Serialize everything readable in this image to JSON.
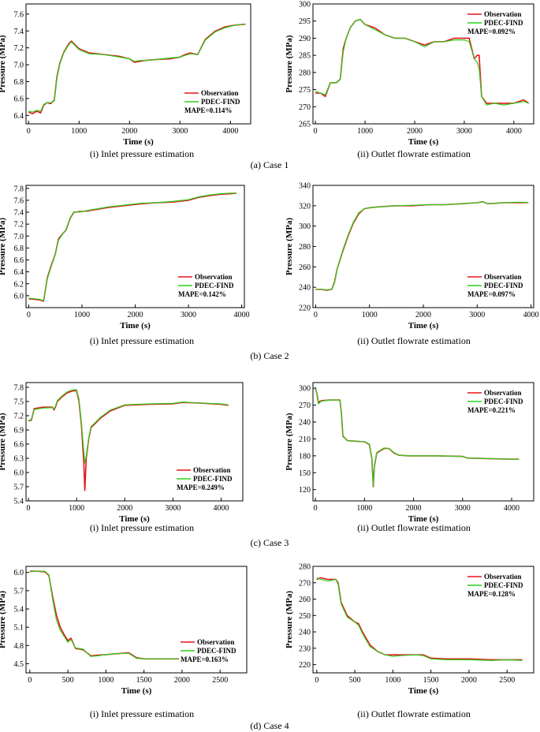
{
  "colors": {
    "observation": "#e8141c",
    "pdec_find": "#2bd11c",
    "axis": "#000000"
  },
  "chart_data": [
    {
      "type": "line",
      "id": "case1-inlet",
      "panel": "(i) Inlet pressure estimation",
      "xlabel": "Time (s)",
      "ylabel": "Pressure (MPa)",
      "xlim": [
        -50,
        4400
      ],
      "ylim": [
        6.3,
        7.72
      ],
      "xticks": [
        0,
        1000,
        2000,
        3000,
        4000
      ],
      "yticks": [
        6.4,
        6.6,
        6.8,
        7.0,
        7.2,
        7.4,
        7.6
      ],
      "ydec": 1,
      "legend": {
        "position": "bottom-right",
        "entries": [
          "Observation",
          "PDEC-FIND"
        ],
        "mape": "MAPE=0.114%"
      },
      "x": [
        0,
        80,
        160,
        240,
        300,
        360,
        440,
        510,
        560,
        620,
        700,
        800,
        850,
        900,
        1000,
        1200,
        1500,
        1800,
        2000,
        2100,
        2200,
        2300,
        2500,
        2800,
        3000,
        3100,
        3200,
        3350,
        3500,
        3700,
        3900,
        4100,
        4300
      ],
      "series": [
        {
          "name": "Observation",
          "values": [
            6.44,
            6.42,
            6.45,
            6.43,
            6.52,
            6.55,
            6.54,
            6.58,
            6.85,
            7.02,
            7.15,
            7.25,
            7.28,
            7.25,
            7.19,
            7.14,
            7.12,
            7.1,
            7.07,
            7.03,
            7.04,
            7.05,
            7.06,
            7.07,
            7.09,
            7.12,
            7.14,
            7.12,
            7.3,
            7.4,
            7.45,
            7.47,
            7.48
          ]
        },
        {
          "name": "PDEC-FIND",
          "values": [
            6.45,
            6.44,
            6.46,
            6.45,
            6.53,
            6.55,
            6.55,
            6.57,
            6.83,
            7.01,
            7.14,
            7.24,
            7.27,
            7.24,
            7.18,
            7.13,
            7.12,
            7.09,
            7.07,
            7.04,
            7.05,
            7.05,
            7.06,
            7.08,
            7.09,
            7.11,
            7.13,
            7.12,
            7.29,
            7.39,
            7.44,
            7.47,
            7.48
          ]
        }
      ]
    },
    {
      "type": "line",
      "id": "case1-outlet",
      "panel": "(ii) Outlet flowrate estimation",
      "xlabel": "Time (s)",
      "ylabel": "Pressure (MPa)",
      "xlim": [
        -50,
        4400
      ],
      "ylim": [
        265,
        300
      ],
      "xticks": [
        0,
        1000,
        2000,
        3000,
        4000
      ],
      "yticks": [
        265,
        270,
        275,
        280,
        285,
        290,
        295,
        300
      ],
      "ydec": 0,
      "legend": {
        "position": "top-right",
        "entries": [
          "Observation",
          "PDEC-FIND"
        ],
        "mape": "MAPE=0.092%"
      },
      "x": [
        0,
        100,
        200,
        300,
        420,
        500,
        560,
        620,
        700,
        800,
        900,
        1000,
        1200,
        1400,
        1600,
        1800,
        2000,
        2200,
        2400,
        2600,
        2800,
        3000,
        3100,
        3200,
        3260,
        3300,
        3350,
        3450,
        3600,
        3800,
        4000,
        4200,
        4300
      ],
      "series": [
        {
          "name": "Observation",
          "values": [
            274,
            274,
            273,
            277,
            277,
            278,
            287,
            290,
            293,
            295,
            295.5,
            294,
            293,
            291,
            290,
            290,
            289,
            288,
            289,
            289,
            290,
            290,
            290,
            284,
            285,
            285,
            273,
            271,
            271,
            271,
            271,
            272,
            271
          ]
        },
        {
          "name": "PDEC-FIND",
          "values": [
            274.5,
            274,
            273.5,
            277,
            277,
            278,
            286,
            290,
            293,
            295,
            295.5,
            294,
            292.5,
            291,
            290,
            290,
            289,
            287.5,
            289,
            289,
            289.5,
            289.5,
            289,
            284,
            283,
            281,
            273,
            270.5,
            271,
            270.5,
            271,
            271.5,
            271
          ]
        }
      ]
    },
    {
      "type": "line",
      "id": "case2-inlet",
      "panel": "(i) Inlet pressure estimation",
      "xlabel": "Time (s)",
      "ylabel": "Pressure (MPa)",
      "xlim": [
        -50,
        4050
      ],
      "ylim": [
        5.8,
        7.85
      ],
      "xticks": [
        0,
        1000,
        2000,
        3000,
        4000
      ],
      "yticks": [
        6.0,
        6.2,
        6.4,
        6.6,
        6.8,
        7.0,
        7.2,
        7.4,
        7.6,
        7.8
      ],
      "ydec": 1,
      "legend": {
        "position": "bottom-right",
        "entries": [
          "Observation",
          "PDEC-FIND"
        ],
        "mape": "MAPE=0.142%"
      },
      "x": [
        0,
        100,
        200,
        280,
        350,
        420,
        500,
        560,
        620,
        700,
        780,
        850,
        950,
        1100,
        1300,
        1500,
        1800,
        2100,
        2400,
        2700,
        3000,
        3200,
        3400,
        3600,
        3800,
        3900
      ],
      "series": [
        {
          "name": "Observation",
          "values": [
            5.95,
            5.94,
            5.93,
            5.91,
            6.3,
            6.5,
            6.7,
            6.95,
            7.02,
            7.1,
            7.3,
            7.4,
            7.41,
            7.42,
            7.45,
            7.48,
            7.51,
            7.54,
            7.56,
            7.57,
            7.6,
            7.65,
            7.68,
            7.7,
            7.71,
            7.72
          ]
        },
        {
          "name": "PDEC-FIND",
          "values": [
            5.96,
            5.95,
            5.94,
            5.92,
            6.28,
            6.48,
            6.69,
            6.93,
            7.01,
            7.11,
            7.31,
            7.41,
            7.4,
            7.43,
            7.46,
            7.49,
            7.52,
            7.55,
            7.56,
            7.58,
            7.61,
            7.66,
            7.69,
            7.71,
            7.72,
            7.72
          ]
        }
      ]
    },
    {
      "type": "line",
      "id": "case2-outlet",
      "panel": "(ii) Outlet flowrate estimation",
      "xlabel": "Time (s)",
      "ylabel": "Pressure (MPa)",
      "xlim": [
        -50,
        4050
      ],
      "ylim": [
        220,
        340
      ],
      "xticks": [
        0,
        1000,
        2000,
        3000,
        4000
      ],
      "yticks": [
        220,
        240,
        260,
        280,
        300,
        320,
        340
      ],
      "ydec": 0,
      "legend": {
        "position": "bottom-right",
        "entries": [
          "Observation",
          "PDEC-FIND"
        ],
        "mape": "MAPE=0.097%"
      },
      "x": [
        0,
        100,
        200,
        300,
        350,
        400,
        500,
        600,
        700,
        800,
        900,
        1000,
        1200,
        1500,
        1800,
        2100,
        2400,
        2700,
        3000,
        3100,
        3200,
        3500,
        3800,
        3950
      ],
      "series": [
        {
          "name": "Observation",
          "values": [
            238,
            238,
            237,
            238,
            245,
            258,
            275,
            290,
            303,
            312,
            317,
            318,
            319,
            320,
            320,
            321,
            321,
            322,
            323,
            324,
            322,
            323,
            323,
            323
          ]
        },
        {
          "name": "PDEC-FIND",
          "values": [
            238,
            238,
            237.5,
            238,
            244,
            258,
            276,
            291,
            304,
            313,
            317,
            318,
            319,
            320,
            320.5,
            321,
            321,
            322,
            323,
            324,
            322,
            323,
            323.5,
            323
          ]
        }
      ]
    },
    {
      "type": "line",
      "id": "case3-inlet",
      "panel": "(i) Inlet pressure estimation",
      "xlabel": "Time (s)",
      "ylabel": "Pressure (MPa)",
      "xlim": [
        -50,
        4450
      ],
      "ylim": [
        5.4,
        7.9
      ],
      "xticks": [
        0,
        1000,
        2000,
        3000,
        4000
      ],
      "yticks": [
        5.4,
        5.7,
        6.0,
        6.3,
        6.6,
        6.9,
        7.2,
        7.5,
        7.8
      ],
      "ydec": 1,
      "legend": {
        "position": "bottom-right",
        "entries": [
          "Observation",
          "PDEC-FIND"
        ],
        "mape": "MAPE=0.249%"
      },
      "x": [
        0,
        60,
        120,
        300,
        500,
        530,
        560,
        600,
        700,
        800,
        900,
        1000,
        1050,
        1100,
        1150,
        1170,
        1200,
        1250,
        1300,
        1400,
        1500,
        1700,
        2000,
        2500,
        3000,
        3200,
        3500,
        4000,
        4150
      ],
      "series": [
        {
          "name": "Observation",
          "values": [
            7.1,
            7.1,
            7.35,
            7.38,
            7.38,
            7.32,
            7.38,
            7.5,
            7.6,
            7.68,
            7.72,
            7.73,
            7.5,
            7.0,
            6.2,
            5.62,
            6.3,
            6.7,
            6.95,
            7.05,
            7.15,
            7.3,
            7.42,
            7.44,
            7.45,
            7.48,
            7.47,
            7.44,
            7.42
          ]
        },
        {
          "name": "PDEC-FIND",
          "values": [
            7.08,
            7.12,
            7.33,
            7.36,
            7.37,
            7.34,
            7.4,
            7.52,
            7.62,
            7.7,
            7.74,
            7.75,
            7.55,
            7.05,
            6.45,
            6.2,
            6.35,
            6.72,
            6.97,
            7.07,
            7.17,
            7.32,
            7.43,
            7.45,
            7.46,
            7.49,
            7.47,
            7.45,
            7.43
          ]
        }
      ]
    },
    {
      "type": "line",
      "id": "case3-outlet",
      "panel": "(ii) Outlet flowrate estimation",
      "xlabel": "Time (s)",
      "ylabel": "Pressure (MPa)",
      "xlim": [
        -50,
        4450
      ],
      "ylim": [
        100,
        310
      ],
      "xticks": [
        0,
        1000,
        2000,
        3000,
        4000
      ],
      "yticks": [
        120,
        150,
        180,
        210,
        240,
        270,
        300
      ],
      "ydec": 0,
      "legend": {
        "position": "top-right",
        "entries": [
          "Observation",
          "PDEC-FIND"
        ],
        "mape": "MAPE=0.221%"
      },
      "x": [
        0,
        30,
        60,
        120,
        300,
        500,
        530,
        560,
        650,
        800,
        1000,
        1100,
        1150,
        1180,
        1200,
        1250,
        1400,
        1500,
        1600,
        1700,
        1900,
        2500,
        3000,
        3100,
        3500,
        4000,
        4150
      ],
      "series": [
        {
          "name": "Observation",
          "values": [
            300,
            290,
            275,
            278,
            279,
            279,
            255,
            215,
            207,
            206,
            205,
            200,
            175,
            125,
            160,
            185,
            193,
            193,
            185,
            181,
            180,
            180,
            179,
            176,
            175,
            174,
            174
          ]
        },
        {
          "name": "PDEC-FIND",
          "values": [
            302,
            288,
            272,
            277,
            279,
            279,
            253,
            214,
            207,
            206,
            205,
            201,
            176,
            126,
            162,
            186,
            194,
            193,
            186,
            181,
            180,
            180,
            179,
            176,
            175,
            174,
            174
          ]
        }
      ]
    },
    {
      "type": "line",
      "id": "case4-inlet",
      "panel": "(i) Inlet pressure estimation",
      "xlabel": "Time (s)",
      "ylabel": "Pressure (MPa)",
      "xlim": [
        -50,
        2850
      ],
      "ylim": [
        4.35,
        6.1
      ],
      "xticks": [
        0,
        500,
        1000,
        1500,
        2000,
        2500
      ],
      "yticks": [
        4.5,
        4.8,
        5.1,
        5.4,
        5.7,
        6.0
      ],
      "ydec": 1,
      "legend": {
        "position": "bottom-right",
        "entries": [
          "Observation",
          "PDEC-FIND"
        ],
        "mape": "MAPE=0.163%"
      },
      "x": [
        0,
        100,
        200,
        250,
        300,
        350,
        400,
        450,
        500,
        540,
        600,
        700,
        800,
        900,
        1000,
        1100,
        1200,
        1300,
        1400,
        1500,
        1800,
        2100,
        2400,
        2700
      ],
      "series": [
        {
          "name": "Observation",
          "values": [
            6.02,
            6.02,
            6.01,
            5.95,
            5.6,
            5.3,
            5.1,
            4.98,
            4.88,
            4.92,
            4.75,
            4.73,
            4.63,
            4.64,
            4.65,
            4.66,
            4.67,
            4.68,
            4.6,
            4.58,
            4.58,
            4.58,
            4.58,
            4.58
          ]
        },
        {
          "name": "PDEC-FIND",
          "values": [
            6.01,
            6.02,
            6.02,
            5.96,
            5.55,
            5.22,
            5.05,
            4.95,
            4.85,
            4.9,
            4.76,
            4.74,
            4.62,
            4.63,
            4.65,
            4.66,
            4.67,
            4.67,
            4.59,
            4.58,
            4.58,
            4.58,
            4.58,
            4.58
          ]
        }
      ]
    },
    {
      "type": "line",
      "id": "case4-outlet",
      "panel": "(ii) Outlet flowrate estimation",
      "xlabel": "Time (s)",
      "ylabel": "Pressure (MPa)",
      "xlim": [
        -50,
        2850
      ],
      "ylim": [
        215,
        280
      ],
      "xticks": [
        0,
        500,
        1000,
        1500,
        2000,
        2500
      ],
      "yticks": [
        220,
        230,
        240,
        250,
        260,
        270,
        280
      ],
      "ydec": 0,
      "legend": {
        "position": "top-right",
        "entries": [
          "Observation",
          "PDEC-FIND"
        ],
        "mape": "MAPE=0.128%"
      },
      "x": [
        0,
        50,
        150,
        250,
        280,
        320,
        400,
        500,
        550,
        600,
        700,
        800,
        900,
        1000,
        1100,
        1300,
        1400,
        1500,
        1700,
        2000,
        2300,
        2500,
        2700
      ],
      "series": [
        {
          "name": "Observation",
          "values": [
            272,
            273,
            272,
            272,
            270,
            258,
            250,
            246,
            245,
            240,
            232,
            228,
            226,
            226,
            226,
            226,
            226,
            224,
            223.5,
            223.5,
            223,
            223,
            223
          ]
        },
        {
          "name": "PDEC-FIND",
          "values": [
            273,
            272,
            271,
            272,
            269,
            257,
            249,
            246,
            244,
            239,
            231,
            228,
            226,
            225,
            225.5,
            226,
            225.5,
            223.5,
            223,
            223,
            222.5,
            223,
            222.5
          ]
        }
      ]
    }
  ],
  "captions": {
    "panel_i": "(i) Inlet pressure estimation",
    "panel_ii": "(ii) Outlet flowrate estimation",
    "case1": "(a) Case 1",
    "case2": "(b) Case 2",
    "case3": "(c) Case 3",
    "case4": "(d) Case 4"
  }
}
